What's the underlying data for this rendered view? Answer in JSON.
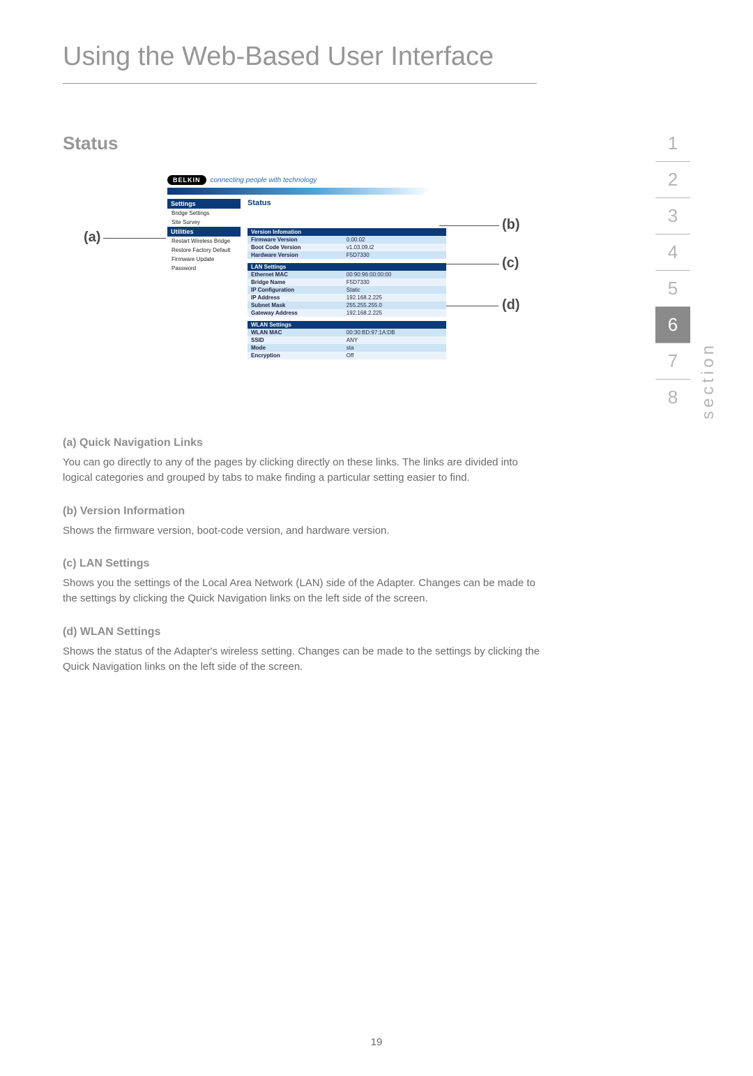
{
  "page": {
    "title": "Using the Web-Based User Interface",
    "heading": "Status",
    "number": "19"
  },
  "rail": {
    "word": "section",
    "items": [
      "1",
      "2",
      "3",
      "4",
      "5",
      "6",
      "7",
      "8"
    ],
    "active_index": 5
  },
  "labels": {
    "a": "(a)",
    "b": "(b)",
    "c": "(c)",
    "d": "(d)"
  },
  "ui": {
    "logo": "BELKIN",
    "tagline": "connecting people with technology",
    "nav": {
      "head1": "Settings",
      "l1": "Bridge Settings",
      "l2": "Site Survey",
      "head2": "Utilities",
      "l3": "Restart Wireless Bridge",
      "l4": "Restore Factory Default",
      "l5": "Firmware Update",
      "l6": "Password"
    },
    "content_title": "Status",
    "version": {
      "title": "Version Infomation",
      "r1k": "Firmware Version",
      "r1v": "0.00.02",
      "r2k": "Boot Code Version",
      "r2v": "v1.03.09.t2",
      "r3k": "Hardware Version",
      "r3v": "F5D7330"
    },
    "lan": {
      "title": "LAN Settings",
      "r1k": "Ethernet MAC",
      "r1v": "00:90:96:00:00:00",
      "r2k": "Bridge Name",
      "r2v": "F5D7330",
      "r3k": "IP Configuration",
      "r3v": "Static",
      "r4k": "IP Address",
      "r4v": "192.168.2.225",
      "r5k": "Subnet Mask",
      "r5v": "255.255.255.0",
      "r6k": "Gateway Address",
      "r6v": "192.168.2.225"
    },
    "wlan": {
      "title": "WLAN Settings",
      "r1k": "WLAN MAC",
      "r1v": "00:30:BD:97:1A:DB",
      "r2k": "SSID",
      "r2v": "ANY",
      "r3k": "Mode",
      "r3v": "sta",
      "r4k": "Encryption",
      "r4v": "Off"
    }
  },
  "desc": {
    "a_head": "(a) Quick Navigation Links",
    "a_body": "You can go directly to any of the pages by clicking directly on these links. The links are divided into logical categories and grouped by tabs to make finding a particular setting easier to find.",
    "b_head": "(b) Version Information",
    "b_body": "Shows the firmware version, boot-code version, and hardware version.",
    "c_head": "(c) LAN Settings",
    "c_body": "Shows you the settings of the Local Area Network (LAN) side of the Adapter. Changes can be made to the settings by clicking the Quick Navigation links on the left side of the screen.",
    "d_head": "(d) WLAN Settings",
    "d_body": "Shows the status of the Adapter's wireless setting. Changes can be made to the settings by clicking the Quick Navigation links on the left side of the screen."
  }
}
